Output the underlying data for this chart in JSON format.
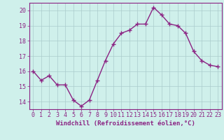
{
  "x": [
    0,
    1,
    2,
    3,
    4,
    5,
    6,
    7,
    8,
    9,
    10,
    11,
    12,
    13,
    14,
    15,
    16,
    17,
    18,
    19,
    20,
    21,
    22,
    23
  ],
  "y": [
    16.0,
    15.4,
    15.7,
    15.1,
    15.1,
    14.1,
    13.7,
    14.1,
    15.4,
    16.7,
    17.8,
    18.5,
    18.7,
    19.1,
    19.1,
    20.2,
    19.7,
    19.1,
    19.0,
    18.5,
    17.3,
    16.7,
    16.4,
    16.3
  ],
  "line_color": "#8b2383",
  "marker": "+",
  "marker_size": 4,
  "marker_color": "#8b2383",
  "bg_color": "#cff0eb",
  "grid_color": "#aacccc",
  "xlabel": "Windchill (Refroidissement éolien,°C)",
  "xlabel_color": "#8b2383",
  "ylim": [
    13.5,
    20.5
  ],
  "yticks": [
    14,
    15,
    16,
    17,
    18,
    19,
    20
  ],
  "xticks": [
    0,
    1,
    2,
    3,
    4,
    5,
    6,
    7,
    8,
    9,
    10,
    11,
    12,
    13,
    14,
    15,
    16,
    17,
    18,
    19,
    20,
    21,
    22,
    23
  ],
  "tick_label_color": "#8b2383",
  "spine_color": "#8b2383",
  "linewidth": 1.0,
  "tick_fontsize": 6.0,
  "xlabel_fontsize": 6.5
}
